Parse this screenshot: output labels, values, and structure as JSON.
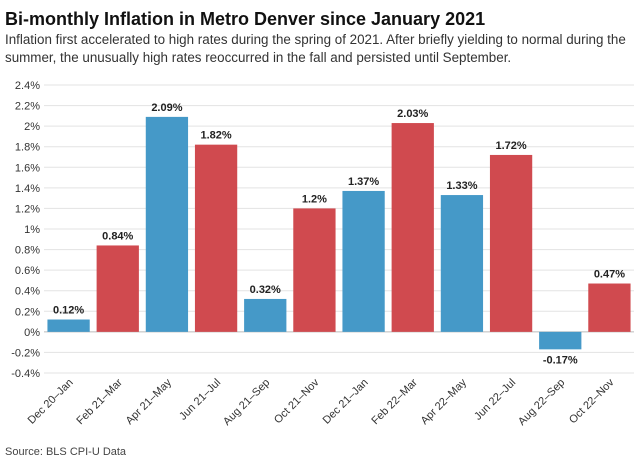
{
  "chart_data": {
    "type": "bar",
    "title": "Bi-monthly Inflation in Metro Denver since January 2021",
    "subtitle": "Inflation first accelerated to high rates during the spring of 2021. After briefly yielding to normal during the summer, the unusually high rates reoccurred in the fall and persisted until September.",
    "source": "Source: BLS CPI-U Data",
    "categories": [
      "Dec 20–Jan",
      "Feb 21–Mar",
      "Apr 21–May",
      "Jun 21–Jul",
      "Aug 21–Sep",
      "Oct 21–Nov",
      "Dec 21–Jan",
      "Feb 22–Mar",
      "Apr 22–May",
      "Jun 22–Jul",
      "Aug 22–Sep",
      "Oct 22–Nov"
    ],
    "values": [
      0.12,
      0.84,
      2.09,
      1.82,
      0.32,
      1.2,
      1.37,
      2.03,
      1.33,
      1.72,
      -0.17,
      0.47
    ],
    "data_labels": [
      "0.12%",
      "0.84%",
      "2.09%",
      "1.82%",
      "0.32%",
      "1.2%",
      "1.37%",
      "2.03%",
      "1.33%",
      "1.72%",
      "-0.17%",
      "0.47%"
    ],
    "y_ticks": [
      -0.4,
      -0.2,
      0,
      0.2,
      0.4,
      0.6,
      0.8,
      1,
      1.2,
      1.4,
      1.6,
      1.8,
      2,
      2.2,
      2.4
    ],
    "y_tick_labels": [
      "-0.4%",
      "-0.2%",
      "0%",
      "0.2%",
      "0.4%",
      "0.6%",
      "0.8%",
      "1%",
      "1.2%",
      "1.4%",
      "1.6%",
      "1.8%",
      "2%",
      "2.2%",
      "2.4%"
    ],
    "ylim": [
      -0.4,
      2.4
    ],
    "xlabel": "",
    "ylabel": "",
    "grid": true,
    "bar_colors": [
      "#4599c8",
      "#d04a4f",
      "#4599c8",
      "#d04a4f",
      "#4599c8",
      "#d04a4f",
      "#4599c8",
      "#d04a4f",
      "#4599c8",
      "#d04a4f",
      "#4599c8",
      "#d04a4f"
    ]
  }
}
